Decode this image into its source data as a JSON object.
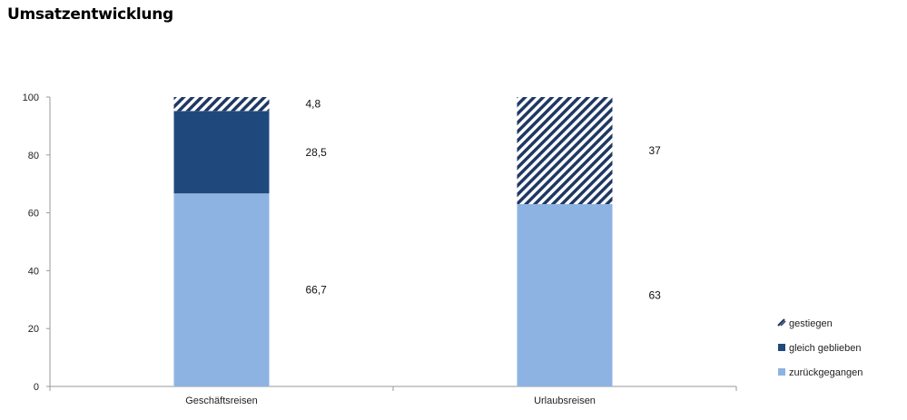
{
  "page_title": "Umsatzentwicklung",
  "chart_data": {
    "type": "bar",
    "stacked": true,
    "title": "Umsatzentwicklung",
    "categories": [
      "Geschäftsreisen",
      "Urlaubsreisen"
    ],
    "series": [
      {
        "name": "zurückgegangen",
        "values": [
          66.7,
          63
        ],
        "labels": [
          "66,7",
          "63"
        ],
        "color": "#8db3e2",
        "pattern": "solid"
      },
      {
        "name": "gleich geblieben",
        "values": [
          28.5,
          0
        ],
        "labels": [
          "28,5",
          ""
        ],
        "color": "#1f497d",
        "pattern": "solid"
      },
      {
        "name": "gestiegen",
        "values": [
          4.8,
          37
        ],
        "labels": [
          "4,8",
          "37"
        ],
        "color": "#1f3864",
        "pattern": "diagonal-stripes"
      }
    ],
    "yticks": [
      "0",
      "20",
      "40",
      "60",
      "80",
      "100"
    ],
    "ylim": [
      0,
      100
    ],
    "xlabel": "",
    "ylabel": "",
    "grid": false,
    "legend_position": "right",
    "legend_order": [
      "gestiegen",
      "gleich geblieben",
      "zurückgegangen"
    ]
  }
}
